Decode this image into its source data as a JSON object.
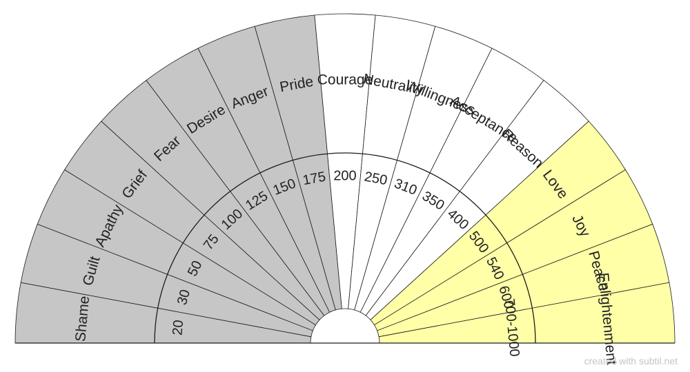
{
  "colors": {
    "low": "#c6c6c6",
    "mid": "#ffffff",
    "high": "#ffffa8",
    "stroke": "#1a1a1a"
  },
  "segments": [
    {
      "label": "Shame",
      "level": "20",
      "tier": "low"
    },
    {
      "label": "Guilt",
      "level": "30",
      "tier": "low"
    },
    {
      "label": "Apathy",
      "level": "50",
      "tier": "low"
    },
    {
      "label": "Grief",
      "level": "75",
      "tier": "low"
    },
    {
      "label": "Fear",
      "level": "100",
      "tier": "low"
    },
    {
      "label": "Desire",
      "level": "125",
      "tier": "low"
    },
    {
      "label": "Anger",
      "level": "150",
      "tier": "low"
    },
    {
      "label": "Pride",
      "level": "175",
      "tier": "low"
    },
    {
      "label": "Courage",
      "level": "200",
      "tier": "mid"
    },
    {
      "label": "Neutrality",
      "level": "250",
      "tier": "mid"
    },
    {
      "label": "Willingness",
      "level": "310",
      "tier": "mid"
    },
    {
      "label": "Acceptance",
      "level": "350",
      "tier": "mid"
    },
    {
      "label": "Reason",
      "level": "400",
      "tier": "mid"
    },
    {
      "label": "Love",
      "level": "500",
      "tier": "high"
    },
    {
      "label": "Joy",
      "level": "540",
      "tier": "high"
    },
    {
      "label": "Peace",
      "level": "600",
      "tier": "high"
    },
    {
      "label": "Enlightenment",
      "level": "700-1000",
      "tier": "high"
    }
  ],
  "credit": "created with subtil.net"
}
